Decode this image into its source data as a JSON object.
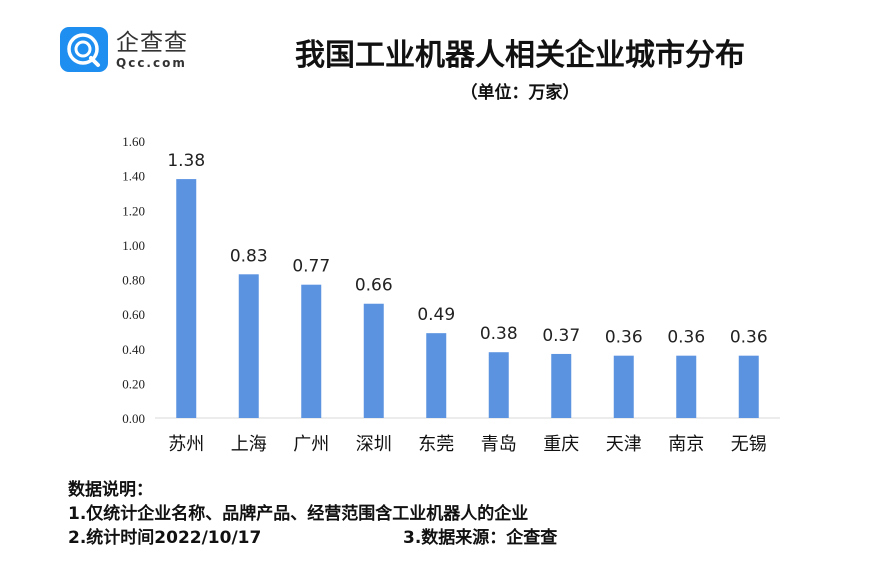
{
  "logo": {
    "name_cn": "企查查",
    "name_en": "Qcc.com",
    "color": "#1e8ef0"
  },
  "title": "我国工业机器人相关企业城市分布",
  "subtitle": "（单位：万家）",
  "chart_data": {
    "type": "bar",
    "title": "我国工业机器人相关企业城市分布",
    "unit": "（单位：万家）",
    "categories": [
      "苏州",
      "上海",
      "广州",
      "深圳",
      "东莞",
      "青岛",
      "重庆",
      "天津",
      "南京",
      "无锡"
    ],
    "values": [
      1.38,
      0.83,
      0.77,
      0.66,
      0.49,
      0.38,
      0.37,
      0.36,
      0.36,
      0.36
    ],
    "value_labels": [
      "1.38",
      "0.83",
      "0.77",
      "0.66",
      "0.49",
      "0.38",
      "0.37",
      "0.36",
      "0.36",
      "0.36"
    ],
    "yticks": [
      "0.00",
      "0.20",
      "0.40",
      "0.60",
      "0.80",
      "1.00",
      "1.20",
      "1.40",
      "1.60"
    ],
    "ylim": [
      0,
      1.6
    ],
    "grid": false,
    "bar_color": "#5b93e1"
  },
  "notes": {
    "heading": "数据说明：",
    "line1": "1.仅统计企业名称、品牌产品、经营范围含工业机器人的企业",
    "line2a": "2.统计时间2022/10/17",
    "line2b": "3.数据来源：企查查"
  }
}
